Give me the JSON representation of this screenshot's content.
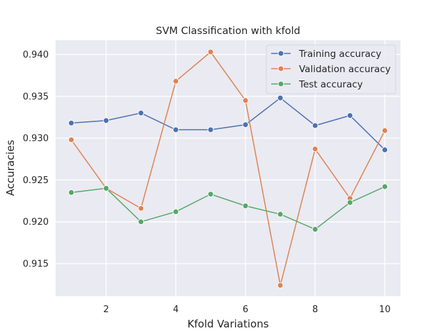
{
  "chart_data": {
    "type": "line",
    "title": "SVM Classification with kfold",
    "xlabel": "Kfold Variations",
    "ylabel": "Accuracies",
    "x": [
      1,
      2,
      3,
      4,
      5,
      6,
      7,
      8,
      9,
      10
    ],
    "xlim": [
      0.55,
      10.45
    ],
    "ylim": [
      0.9111,
      0.9417
    ],
    "xticks": [
      2,
      4,
      6,
      8,
      10
    ],
    "yticks": [
      0.915,
      0.92,
      0.925,
      0.93,
      0.935,
      0.94
    ],
    "ytick_labels": [
      "0.915",
      "0.920",
      "0.925",
      "0.930",
      "0.935",
      "0.940"
    ],
    "grid": true,
    "legend_position": "top-right",
    "series": [
      {
        "name": "Training accuracy",
        "color": "#4c72b0",
        "values": [
          0.9318,
          0.9321,
          0.933,
          0.931,
          0.931,
          0.9316,
          0.9348,
          0.9315,
          0.9327,
          0.9286
        ]
      },
      {
        "name": "Validation accuracy",
        "color": "#dd8452",
        "values": [
          0.9298,
          0.924,
          0.9216,
          0.9368,
          0.9403,
          0.9345,
          0.9124,
          0.9287,
          0.9228,
          0.9309
        ]
      },
      {
        "name": "Test accuracy",
        "color": "#55a868",
        "values": [
          0.9235,
          0.924,
          0.92,
          0.9212,
          0.9233,
          0.9219,
          0.9209,
          0.9191,
          0.9223,
          0.9242
        ]
      }
    ]
  }
}
